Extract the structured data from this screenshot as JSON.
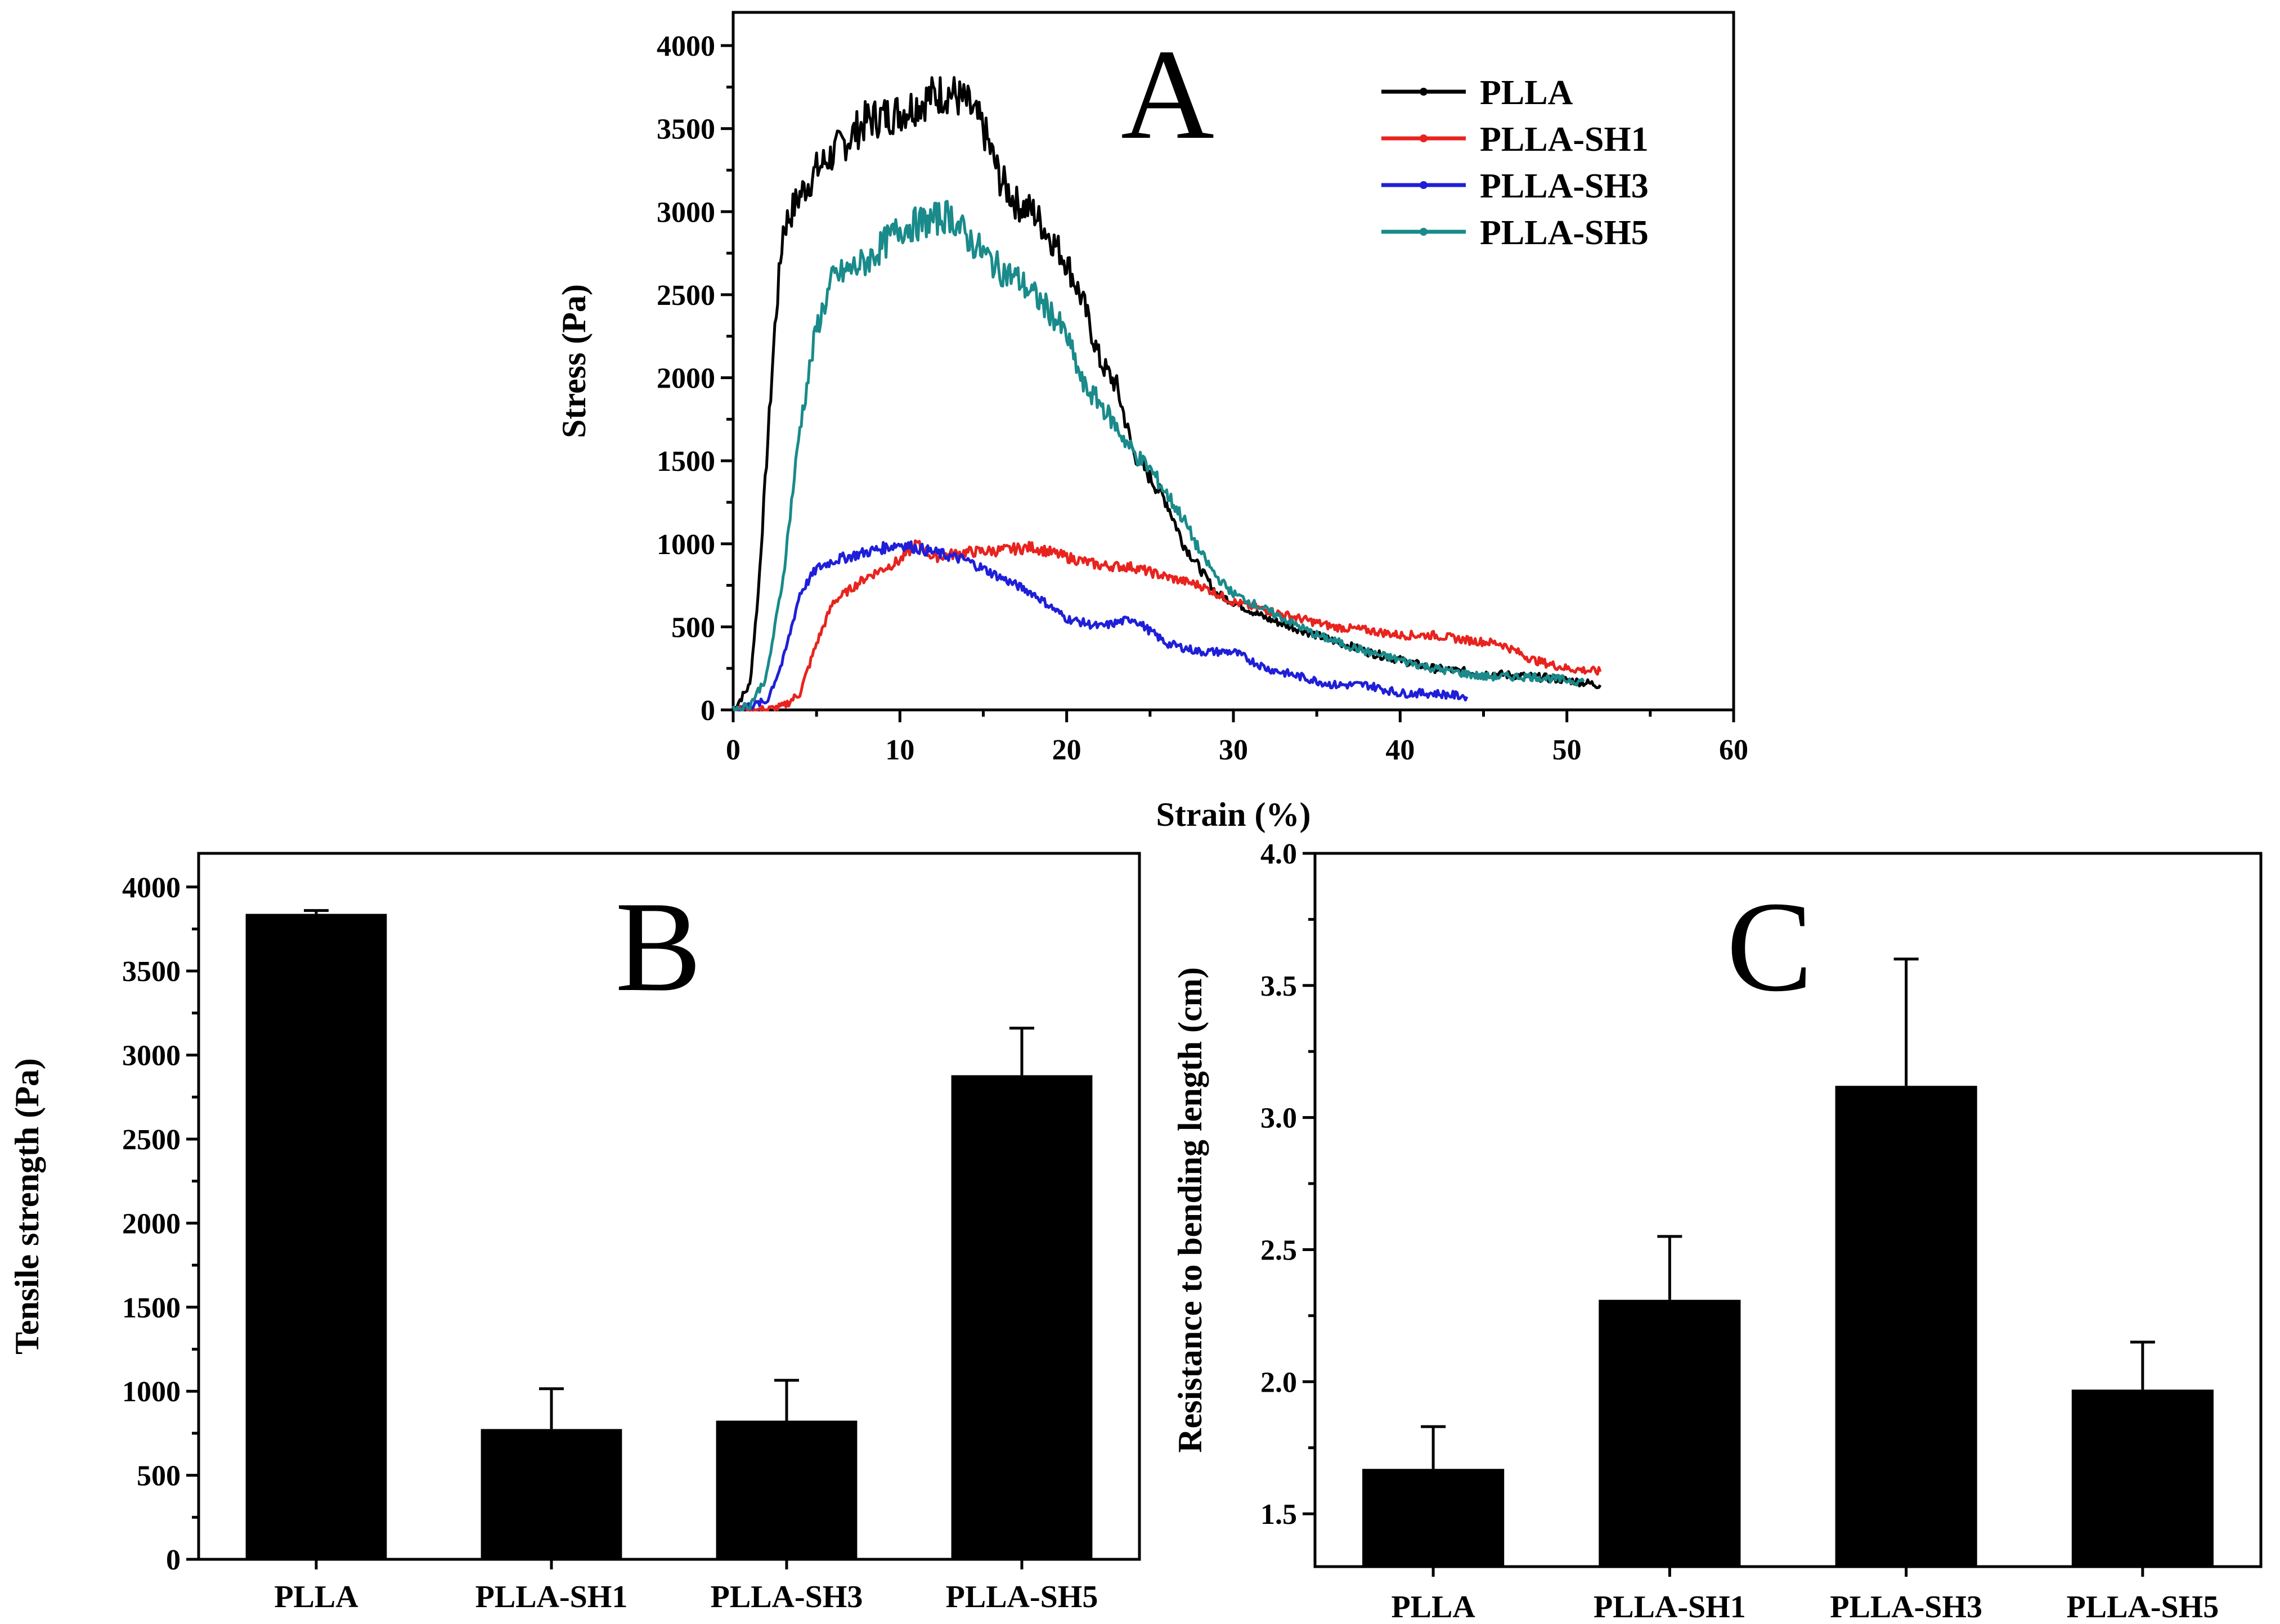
{
  "chart_data": [
    {
      "panel": "A",
      "type": "line",
      "xlabel": "Strain (%)",
      "ylabel": "Stress (Pa)",
      "xlim": [
        0,
        60
      ],
      "ylim": [
        0,
        4200
      ],
      "xticks": [
        0,
        10,
        20,
        30,
        40,
        50,
        60
      ],
      "yticks": [
        0,
        500,
        1000,
        1500,
        2000,
        2500,
        3000,
        3500,
        4000
      ],
      "legend_position": "top-right",
      "series": [
        {
          "name": "PLLA",
          "color": "#000000",
          "x": [
            0,
            1,
            1.5,
            2,
            2.5,
            3,
            4,
            5,
            6,
            8,
            10,
            12,
            13,
            14,
            15,
            16,
            17,
            18,
            19,
            20,
            21,
            22,
            23,
            24,
            25,
            26,
            27,
            28,
            29,
            30,
            32,
            35,
            38,
            40,
            42,
            45,
            48,
            50,
            52
          ],
          "y": [
            0,
            150,
            700,
            1500,
            2300,
            2900,
            3100,
            3250,
            3350,
            3550,
            3600,
            3700,
            3720,
            3650,
            3500,
            3200,
            3050,
            3000,
            2850,
            2700,
            2450,
            2100,
            1950,
            1550,
            1400,
            1250,
            1000,
            850,
            700,
            650,
            550,
            450,
            350,
            300,
            250,
            220,
            200,
            180,
            150
          ]
        },
        {
          "name": "PLLA-SH1",
          "color": "#e8231e",
          "x": [
            0,
            2,
            3,
            4,
            5,
            6,
            8,
            10,
            11,
            12,
            14,
            16,
            18,
            20,
            22,
            24,
            26,
            28,
            30,
            32,
            34,
            36,
            38,
            40,
            42,
            44,
            46,
            48,
            50,
            52
          ],
          "y": [
            0,
            0,
            20,
            100,
            400,
            650,
            800,
            900,
            1000,
            920,
            950,
            960,
            980,
            920,
            870,
            860,
            800,
            750,
            650,
            600,
            550,
            500,
            480,
            450,
            450,
            420,
            400,
            300,
            250,
            230
          ]
        },
        {
          "name": "PLLA-SH3",
          "color": "#1f1fd8",
          "x": [
            0,
            2,
            3,
            4,
            5,
            6,
            8,
            10,
            12,
            14,
            16,
            18,
            20,
            22,
            24,
            26,
            28,
            30,
            32,
            34,
            36,
            38,
            40,
            42,
            44
          ],
          "y": [
            0,
            50,
            300,
            700,
            850,
            900,
            950,
            1000,
            950,
            900,
            800,
            700,
            550,
            500,
            550,
            400,
            350,
            350,
            250,
            200,
            150,
            150,
            100,
            100,
            80
          ]
        },
        {
          "name": "PLLA-SH5",
          "color": "#1a8a8a",
          "x": [
            0,
            1,
            2,
            3,
            4,
            5,
            6,
            8,
            10,
            12,
            13,
            14,
            15,
            16,
            17,
            18,
            19,
            20,
            21,
            22,
            23,
            24,
            25,
            26,
            27,
            28,
            29,
            30,
            32,
            35,
            38,
            40,
            42,
            45,
            48,
            50,
            51
          ],
          "y": [
            0,
            30,
            200,
            800,
            1700,
            2300,
            2600,
            2700,
            2900,
            2950,
            2980,
            2850,
            2750,
            2650,
            2600,
            2500,
            2400,
            2250,
            1950,
            1850,
            1700,
            1550,
            1450,
            1300,
            1150,
            950,
            800,
            700,
            600,
            450,
            350,
            300,
            250,
            200,
            200,
            180,
            170
          ]
        }
      ]
    },
    {
      "panel": "B",
      "type": "bar",
      "xlabel": "",
      "ylabel": "Tensile strength (Pa)",
      "ylim": [
        0,
        4200
      ],
      "yticks": [
        0,
        500,
        1000,
        1500,
        2000,
        2500,
        3000,
        3500,
        4000
      ],
      "categories": [
        "PLLA",
        "PLLA-SH1",
        "PLLA-SH3",
        "PLLA-SH5"
      ],
      "values": [
        3840,
        775,
        825,
        2880
      ],
      "errors": [
        20,
        240,
        240,
        280
      ],
      "bar_color": "#000000"
    },
    {
      "panel": "C",
      "type": "bar",
      "xlabel": "",
      "ylabel": "Resistance to bending length (cm)",
      "ylim": [
        1.3,
        4.0
      ],
      "yticks": [
        1.5,
        2.0,
        2.5,
        3.0,
        3.5,
        4.0
      ],
      "ytick_labels": [
        "1.5",
        "2.0",
        "2.5",
        "3.0",
        "3.5",
        "4.0"
      ],
      "categories": [
        "PLLA",
        "PLLA-SH1",
        "PLLA-SH3",
        "PLLA-SH5"
      ],
      "values": [
        1.67,
        2.31,
        3.12,
        1.97
      ],
      "errors": [
        0.16,
        0.24,
        0.48,
        0.18
      ],
      "bar_color": "#000000"
    }
  ]
}
